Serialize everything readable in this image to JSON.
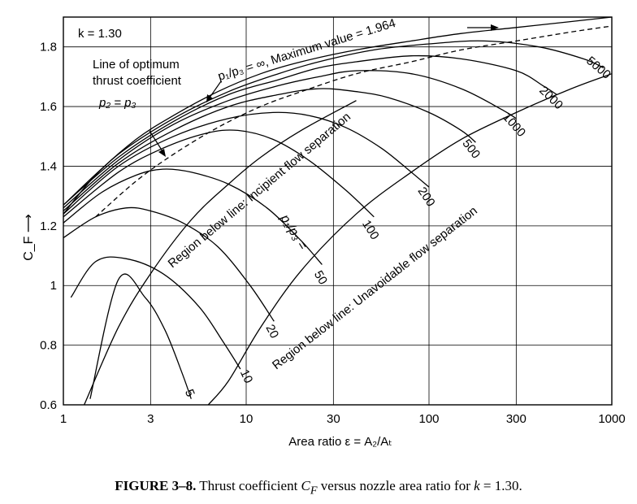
{
  "chart_data": {
    "type": "line",
    "x_scale": "log",
    "xlim": [
      1,
      1000
    ],
    "ylim": [
      0.6,
      1.9
    ],
    "grid": true,
    "xlabel": "Area ratio ε = A₂/Aₜ",
    "ylabel": "C_F ⟶",
    "x_ticks": [
      1,
      3,
      10,
      30,
      100,
      300,
      1000
    ],
    "x_tick_labels": [
      "1",
      "3",
      "10",
      "30",
      "100",
      "300",
      "1000"
    ],
    "y_ticks": [
      0.6,
      0.8,
      1.0,
      1.2,
      1.4,
      1.6,
      1.8
    ],
    "y_tick_labels": [
      "0.6",
      "0.8",
      "1",
      "1.2",
      "1.4",
      "1.6",
      "1.8"
    ],
    "k_label": "k = 1.30",
    "series": [
      {
        "name": "5",
        "x": [
          1.4,
          2.0,
          2.8,
          3.6,
          4.5,
          5.0
        ],
        "y": [
          0.62,
          1.02,
          0.96,
          0.85,
          0.7,
          0.62
        ]
      },
      {
        "name": "10",
        "x": [
          1.1,
          1.5,
          2.2,
          3.5,
          5.5,
          7.5,
          9.3
        ],
        "y": [
          0.96,
          1.08,
          1.09,
          1.04,
          0.93,
          0.81,
          0.72
        ]
      },
      {
        "name": "20",
        "x": [
          1.0,
          1.5,
          2.2,
          3.0,
          4.5,
          7.0,
          10.5,
          14.2
        ],
        "y": [
          1.16,
          1.23,
          1.26,
          1.25,
          1.21,
          1.13,
          1.0,
          0.88
        ]
      },
      {
        "name": "50",
        "x": [
          1.0,
          1.6,
          2.5,
          3.5,
          5.0,
          8.0,
          13.0,
          20.0,
          26.0
        ],
        "y": [
          1.21,
          1.31,
          1.37,
          1.39,
          1.38,
          1.34,
          1.26,
          1.15,
          1.07
        ]
      },
      {
        "name": "100",
        "x": [
          1.0,
          2.0,
          3.5,
          6.0,
          9.0,
          14.0,
          22.0,
          35.0,
          50.0
        ],
        "y": [
          1.23,
          1.38,
          1.46,
          1.51,
          1.52,
          1.49,
          1.42,
          1.32,
          1.23
        ]
      },
      {
        "name": "200",
        "x": [
          1.0,
          2.0,
          4.0,
          8.0,
          14.0,
          22.0,
          35.0,
          55.0,
          80.0,
          100.0
        ],
        "y": [
          1.24,
          1.4,
          1.5,
          1.56,
          1.58,
          1.57,
          1.53,
          1.46,
          1.38,
          1.33
        ]
      },
      {
        "name": "500",
        "x": [
          1.0,
          2.0,
          4.0,
          8.0,
          15.0,
          25.0,
          40.0,
          60.0,
          100.0,
          150.0,
          180.0
        ],
        "y": [
          1.25,
          1.41,
          1.52,
          1.6,
          1.64,
          1.66,
          1.65,
          1.63,
          1.58,
          1.52,
          1.48
        ]
      },
      {
        "name": "1000",
        "x": [
          1.0,
          2.0,
          4.0,
          8.0,
          15.0,
          25.0,
          40.0,
          80.0,
          150.0,
          250.0,
          300.0
        ],
        "y": [
          1.26,
          1.42,
          1.54,
          1.62,
          1.67,
          1.7,
          1.72,
          1.71,
          1.66,
          1.59,
          1.56
        ]
      },
      {
        "name": "2000",
        "x": [
          1.0,
          2.0,
          4.0,
          8.0,
          15.0,
          25.0,
          40.0,
          80.0,
          150.0,
          300.0,
          420.0,
          500.0
        ],
        "y": [
          1.27,
          1.43,
          1.55,
          1.64,
          1.69,
          1.73,
          1.75,
          1.77,
          1.76,
          1.72,
          1.67,
          1.64
        ]
      },
      {
        "name": "5000",
        "x": [
          1.0,
          2.0,
          4.0,
          8.0,
          15.0,
          25.0,
          50.0,
          100.0,
          200.0,
          400.0,
          700.0,
          900.0
        ],
        "y": [
          1.27,
          1.44,
          1.56,
          1.65,
          1.71,
          1.75,
          1.79,
          1.81,
          1.82,
          1.8,
          1.76,
          1.73
        ]
      },
      {
        "name": "p1/p3 = ∞",
        "x": [
          1.0,
          1.5,
          2.5,
          4.0,
          7.0,
          12.0,
          20.0,
          40.0,
          80.0,
          150.0,
          300.0,
          600.0,
          1000.0
        ],
        "y": [
          1.24,
          1.37,
          1.49,
          1.57,
          1.65,
          1.71,
          1.75,
          1.79,
          1.82,
          1.845,
          1.865,
          1.885,
          1.9
        ]
      },
      {
        "name": "Line of optimum thrust coefficient p2 = p3",
        "x": [
          1.5,
          2.5,
          4.0,
          7.0,
          12.0,
          20.0,
          40.0,
          80.0,
          150.0,
          300.0,
          600.0,
          1000.0
        ],
        "y": [
          1.23,
          1.35,
          1.44,
          1.53,
          1.6,
          1.65,
          1.71,
          1.75,
          1.79,
          1.82,
          1.85,
          1.87
        ]
      },
      {
        "name": "Region below line: Incipient flow separation",
        "x": [
          1.3,
          2.0,
          3.0,
          5.0,
          8.0,
          12.0,
          20.0,
          40.0
        ],
        "y": [
          0.6,
          0.86,
          1.04,
          1.22,
          1.34,
          1.43,
          1.52,
          1.62
        ]
      },
      {
        "name": "Region below line: Unavoidable flow separation",
        "x": [
          6.2,
          8.0,
          12.0,
          20.0,
          40.0,
          80.0,
          150.0,
          300.0,
          600.0,
          1000.0
        ],
        "y": [
          0.6,
          0.68,
          0.86,
          1.05,
          1.24,
          1.38,
          1.49,
          1.58,
          1.66,
          1.71
        ]
      }
    ],
    "annotations": {
      "inf_line": "p₁/p₃ = ∞, Maximum value = 1.964",
      "optimum_line_1": "Line of optimum",
      "optimum_line_2": "thrust coefficient",
      "optimum_line_3": "p₂ = p₃",
      "p1p3_label": "p₁/p₃ =",
      "incipient": "Region below line: Incipient flow separation",
      "unavoidable": "Region below line: Unavoidable flow separation"
    }
  },
  "caption": {
    "figure_number": "FIGURE 3–8.",
    "text_before": " Thrust coefficient ",
    "symbol": "C",
    "symbol_sub": "F",
    "text_after": " versus nozzle area ratio for ",
    "k_symbol": "k",
    "k_value": " = 1.30."
  }
}
